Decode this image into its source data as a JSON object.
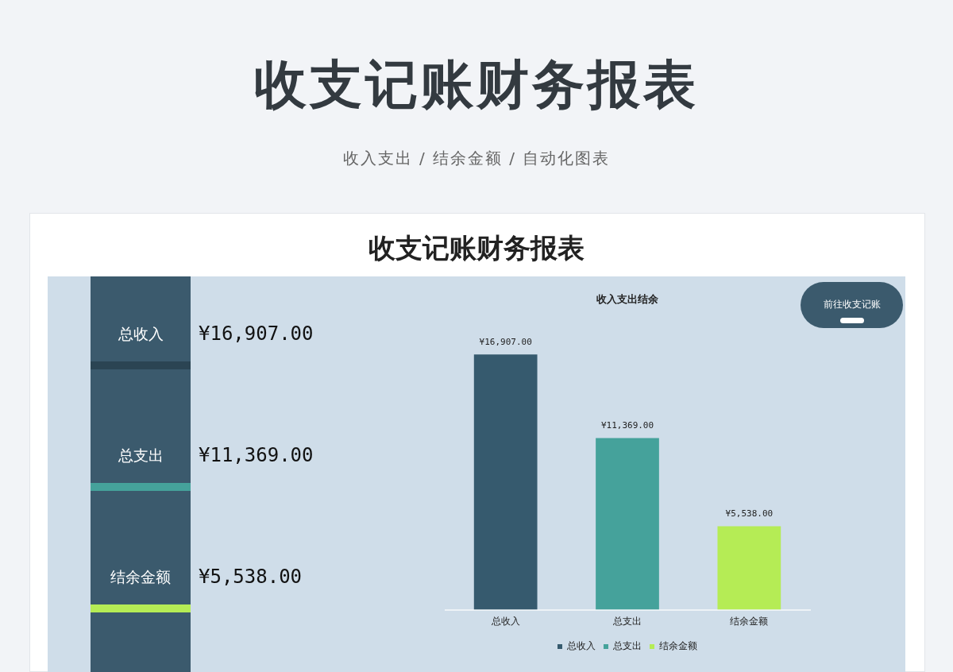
{
  "chart_data": [
    {
      "type": "other",
      "title": "收支记账财务报表",
      "subtitle": "收入支出 / 结余金额 / 自动化图表",
      "annotations": [
        "收支记账财务报表",
        "总收入",
        "¥16,907.00",
        "总支出",
        "¥11,369.00",
        "结余金额",
        "¥5,538.00",
        "前往收支记账"
      ]
    },
    {
      "type": "bar",
      "title": "收入支出结余",
      "categories": [
        "总收入",
        "总支出",
        "结余金额"
      ],
      "series": [
        {
          "name": "总收入",
          "color": "#365a6e",
          "values": [
            16907,
            null,
            null
          ],
          "value_labels": [
            "¥16,907.00",
            null,
            null
          ]
        },
        {
          "name": "总支出",
          "color": "#45a29b",
          "values": [
            null,
            11369,
            null
          ],
          "value_labels": [
            null,
            "¥11,369.00",
            null
          ]
        },
        {
          "name": "结余金额",
          "color": "#b5ec55",
          "values": [
            null,
            null,
            5538
          ],
          "value_labels": [
            null,
            null,
            "¥5,538.00"
          ]
        }
      ],
      "legend": "bottom",
      "grid": false
    }
  ]
}
